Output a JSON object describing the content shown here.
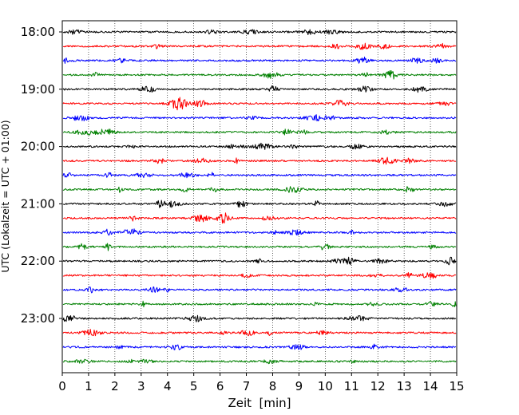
{
  "chart_data": {
    "type": "line",
    "title": "",
    "xlabel": "Zeit  [min]",
    "ylabel": "UTC (Lokalzeit = UTC + 01:00)",
    "xlim": [
      0,
      15
    ],
    "x_ticks": [
      "0",
      "1",
      "2",
      "3",
      "4",
      "5",
      "6",
      "7",
      "8",
      "9",
      "10",
      "11",
      "12",
      "13",
      "14",
      "15"
    ],
    "y_ticks": [
      {
        "label": "18:00",
        "row": 0
      },
      {
        "label": "19:00",
        "row": 4
      },
      {
        "label": "20:00",
        "row": 8
      },
      {
        "label": "21:00",
        "row": 12
      },
      {
        "label": "22:00",
        "row": 16
      },
      {
        "label": "23:00",
        "row": 20
      }
    ],
    "grid": "vertical-dotted",
    "colors": [
      "#000000",
      "#ff0000",
      "#0000ff",
      "#008000"
    ],
    "series": [
      {
        "start": "18:00",
        "color": "#000000"
      },
      {
        "start": "18:15",
        "color": "#ff0000"
      },
      {
        "start": "18:30",
        "color": "#0000ff"
      },
      {
        "start": "18:45",
        "color": "#008000"
      },
      {
        "start": "19:00",
        "color": "#000000"
      },
      {
        "start": "19:15",
        "color": "#ff0000"
      },
      {
        "start": "19:30",
        "color": "#0000ff"
      },
      {
        "start": "19:45",
        "color": "#008000"
      },
      {
        "start": "20:00",
        "color": "#000000"
      },
      {
        "start": "20:15",
        "color": "#ff0000"
      },
      {
        "start": "20:30",
        "color": "#0000ff"
      },
      {
        "start": "20:45",
        "color": "#008000"
      },
      {
        "start": "21:00",
        "color": "#000000"
      },
      {
        "start": "21:15",
        "color": "#ff0000"
      },
      {
        "start": "21:30",
        "color": "#0000ff"
      },
      {
        "start": "21:45",
        "color": "#008000"
      },
      {
        "start": "22:00",
        "color": "#000000"
      },
      {
        "start": "22:15",
        "color": "#ff0000"
      },
      {
        "start": "22:30",
        "color": "#0000ff"
      },
      {
        "start": "22:45",
        "color": "#008000"
      },
      {
        "start": "23:00",
        "color": "#000000"
      },
      {
        "start": "23:15",
        "color": "#ff0000"
      },
      {
        "start": "23:30",
        "color": "#0000ff"
      },
      {
        "start": "23:45",
        "color": "#008000"
      }
    ]
  }
}
